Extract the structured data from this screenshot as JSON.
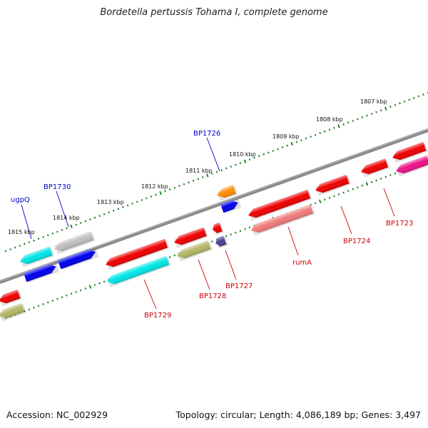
{
  "title": "Bordetella pertussis Tohama I, complete genome",
  "footer": {
    "accession": "Accession: NC_002929",
    "stats": "Topology: circular; Length: 4,086,189 bp; Genes: 3,497"
  },
  "colors": {
    "backbone": "#7a7a7a",
    "tick": "#1a7a1a",
    "forward_label": "#0000cc",
    "reverse_label": "#cc0000"
  },
  "kbp_labels": [
    "1807 kbp",
    "1808 kbp",
    "1809 kbp",
    "1810 kbp",
    "1811 kbp",
    "1812 kbp",
    "1813 kbp",
    "1814 kbp",
    "1815 kbp"
  ],
  "gene_labels": [
    {
      "id": "ugpQ",
      "text": "ugpQ",
      "strand": "forward"
    },
    {
      "id": "BP1730",
      "text": "BP1730",
      "strand": "forward"
    },
    {
      "id": "BP1726",
      "text": "BP1726",
      "strand": "forward"
    },
    {
      "id": "BP1729",
      "text": "BP1729",
      "strand": "reverse"
    },
    {
      "id": "BP1728",
      "text": "BP1728",
      "strand": "reverse"
    },
    {
      "id": "BP1727",
      "text": "BP1727",
      "strand": "reverse"
    },
    {
      "id": "rumA",
      "text": "rumA",
      "strand": "reverse"
    },
    {
      "id": "BP1724",
      "text": "BP1724",
      "strand": "reverse"
    },
    {
      "id": "BP1723",
      "text": "BP1723",
      "strand": "reverse"
    }
  ],
  "features": [
    {
      "id": "ugpQ-gene",
      "lane": "fwd-cds",
      "color": "#00e5e5",
      "dir": "left"
    },
    {
      "id": "ugpQ-cds",
      "lane": "fwd-gene",
      "color": "#0000ee",
      "dir": "right"
    },
    {
      "id": "BP1730-gene",
      "lane": "fwd-cds",
      "color": "#bfbfbf",
      "dir": "left"
    },
    {
      "id": "BP1730-cds",
      "lane": "fwd-gene",
      "color": "#0000ee",
      "dir": "right"
    },
    {
      "id": "BP1726-gene",
      "lane": "fwd-cds",
      "color": "#ff8c00",
      "dir": "left"
    },
    {
      "id": "BP1726-cds",
      "lane": "fwd-gene",
      "color": "#0000ee",
      "dir": "right"
    },
    {
      "id": "far-left-gene",
      "lane": "rev-gene",
      "color": "#ee0000",
      "dir": "left"
    },
    {
      "id": "far-left-cds",
      "lane": "rev-cds",
      "color": "#b5b565",
      "dir": "left"
    },
    {
      "id": "BP1729-gene",
      "lane": "rev-gene",
      "color": "#ee0000",
      "dir": "left"
    },
    {
      "id": "BP1729-cds",
      "lane": "rev-cds",
      "color": "#00e5e5",
      "dir": "left"
    },
    {
      "id": "BP1728-gene",
      "lane": "rev-gene",
      "color": "#ee0000",
      "dir": "left"
    },
    {
      "id": "BP1728-cds",
      "lane": "rev-cds",
      "color": "#b5b565",
      "dir": "left"
    },
    {
      "id": "BP1727-gene",
      "lane": "rev-gene",
      "color": "#ee0000",
      "dir": "left"
    },
    {
      "id": "BP1727-cds",
      "lane": "rev-cds",
      "color": "#4b3f8f",
      "dir": "left"
    },
    {
      "id": "rumA-gene",
      "lane": "rev-gene",
      "color": "#ee0000",
      "dir": "left"
    },
    {
      "id": "rumA-cds",
      "lane": "rev-cds",
      "color": "#f07a7a",
      "dir": "left"
    },
    {
      "id": "BP1724-gene",
      "lane": "rev-gene",
      "color": "#ee0000",
      "dir": "left"
    },
    {
      "id": "BP1723-gene",
      "lane": "rev-gene",
      "color": "#ee0000",
      "dir": "left"
    },
    {
      "id": "BP1723-cds",
      "lane": "rev-cds",
      "color": "#ee1188",
      "dir": "left"
    },
    {
      "id": "edge-right-gene",
      "lane": "rev-gene-far",
      "color": "#ee0000",
      "dir": "left"
    }
  ]
}
